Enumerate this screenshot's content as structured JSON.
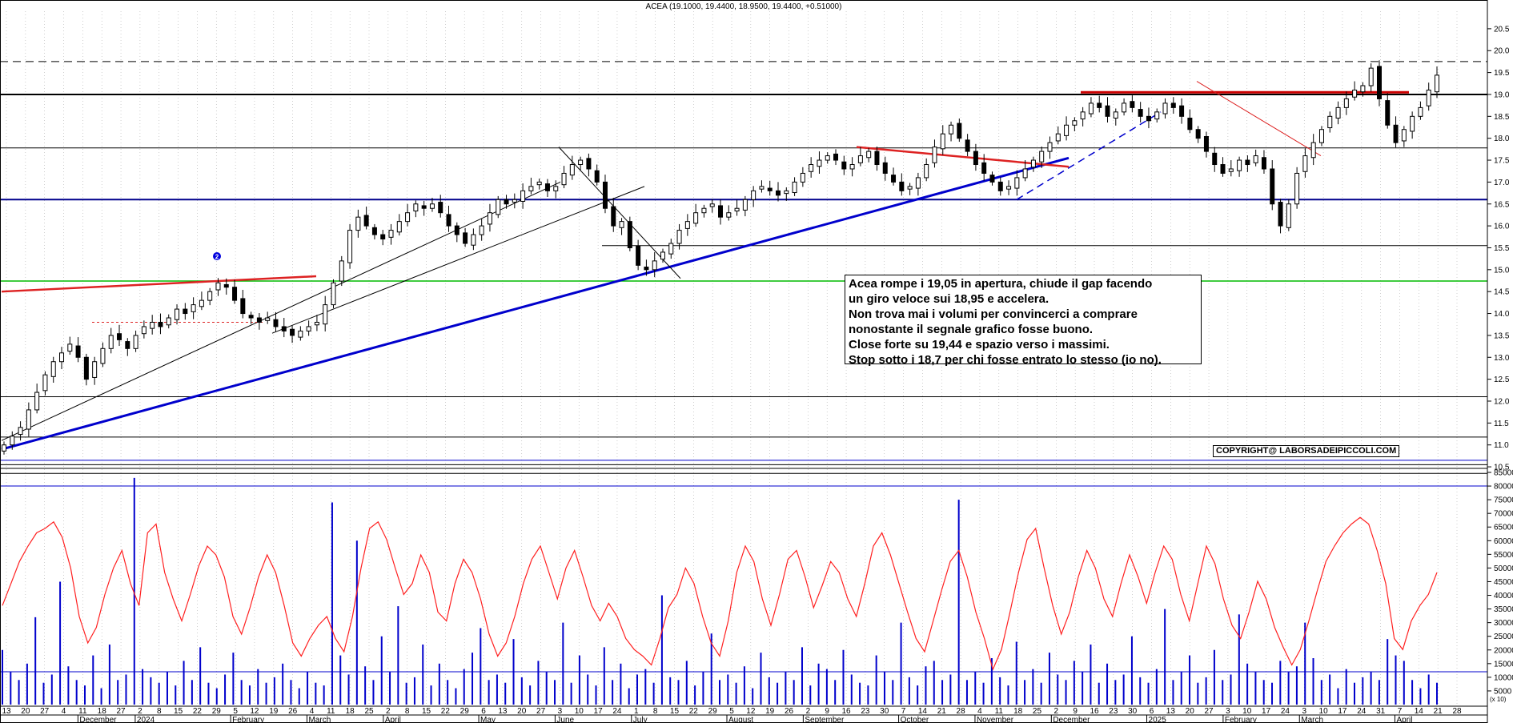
{
  "chart_data": [
    {
      "type": "candlestick",
      "title": "ACEA (19.1000, 19.4400, 18.9500, 19.4400, +0.51000)",
      "ylim": [
        10.3,
        20.9
      ],
      "y_ticks": [
        10.5,
        11.0,
        11.5,
        12.0,
        12.5,
        13.0,
        13.5,
        14.0,
        14.5,
        15.0,
        15.5,
        16.0,
        16.5,
        17.0,
        17.5,
        18.0,
        18.5,
        19.0,
        19.5,
        20.0,
        20.5
      ],
      "y_tick_labels": [
        "10.5",
        "11.0",
        "11.5",
        "12.0",
        "12.5",
        "13.0",
        "13.5",
        "14.0",
        "14.5",
        "15.0",
        "15.5",
        "16.0",
        "16.5",
        "17.0",
        "17.5",
        "18.0",
        "18.5",
        "19.0",
        "19.5",
        "20.0",
        "20.5"
      ],
      "x_day_labels": [
        "13",
        "20",
        "27",
        "4",
        "11",
        "18",
        "27",
        "2",
        "8",
        "15",
        "22",
        "29",
        "5",
        "12",
        "19",
        "26",
        "4",
        "11",
        "18",
        "25",
        "2",
        "8",
        "15",
        "22",
        "29",
        "6",
        "13",
        "20",
        "27",
        "3",
        "10",
        "17",
        "24",
        "1",
        "8",
        "15",
        "22",
        "29",
        "5",
        "12",
        "19",
        "26",
        "2",
        "9",
        "16",
        "23",
        "30",
        "7",
        "14",
        "21",
        "28",
        "4",
        "11",
        "18",
        "25",
        "2",
        "9",
        "16",
        "23",
        "30",
        "6",
        "13",
        "20",
        "27",
        "3",
        "10",
        "17",
        "24",
        "3",
        "10",
        "17",
        "24",
        "31",
        "7",
        "14",
        "21",
        "28"
      ],
      "x_month_labels": [
        "December",
        "2024",
        "February",
        "March",
        "April",
        "May",
        "June",
        "July",
        "August",
        "September",
        "October",
        "November",
        "December",
        "2025",
        "February",
        "March",
        "April"
      ],
      "grid": "vertical dotted",
      "closes": [
        11.0,
        11.2,
        11.4,
        11.8,
        12.2,
        12.6,
        12.9,
        13.1,
        13.3,
        13.0,
        12.5,
        12.9,
        13.2,
        13.5,
        13.4,
        13.2,
        13.5,
        13.7,
        13.8,
        13.7,
        13.9,
        14.1,
        14.0,
        14.2,
        14.3,
        14.5,
        14.7,
        14.6,
        14.3,
        14.0,
        13.9,
        13.8,
        13.9,
        13.7,
        13.6,
        13.5,
        13.6,
        13.7,
        13.8,
        14.2,
        14.7,
        15.2,
        15.9,
        16.2,
        16.0,
        15.8,
        15.7,
        15.9,
        16.1,
        16.3,
        16.5,
        16.4,
        16.5,
        16.3,
        16.0,
        15.8,
        15.6,
        15.8,
        16.0,
        16.3,
        16.6,
        16.5,
        16.6,
        16.8,
        16.9,
        17.0,
        16.8,
        16.9,
        17.2,
        17.4,
        17.5,
        17.3,
        17.0,
        16.4,
        16.0,
        16.1,
        15.5,
        15.1,
        15.0,
        15.2,
        15.4,
        15.6,
        15.9,
        16.1,
        16.3,
        16.4,
        16.5,
        16.2,
        16.3,
        16.4,
        16.6,
        16.8,
        16.9,
        16.8,
        16.7,
        16.8,
        17.0,
        17.2,
        17.4,
        17.5,
        17.6,
        17.5,
        17.3,
        17.4,
        17.6,
        17.7,
        17.4,
        17.2,
        17.0,
        16.8,
        16.9,
        17.1,
        17.4,
        17.8,
        18.1,
        18.3,
        18.0,
        17.7,
        17.4,
        17.2,
        17.0,
        16.8,
        16.9,
        17.1,
        17.3,
        17.5,
        17.7,
        17.9,
        18.1,
        18.3,
        18.4,
        18.6,
        18.8,
        18.7,
        18.5,
        18.6,
        18.8,
        18.7,
        18.5,
        18.4,
        18.6,
        18.8,
        18.7,
        18.5,
        18.2,
        18.0,
        17.7,
        17.4,
        17.2,
        17.3,
        17.5,
        17.4,
        17.6,
        17.3,
        16.5,
        16.0,
        16.5,
        17.2,
        17.6,
        17.9,
        18.2,
        18.5,
        18.7,
        18.9,
        19.1,
        19.2,
        19.6,
        18.9,
        18.3,
        17.9,
        18.2,
        18.5,
        18.7,
        19.1,
        19.44
      ],
      "volume": {
        "ylim": [
          0,
          85000
        ],
        "y_ticks": [
          5000,
          10000,
          15000,
          20000,
          25000,
          30000,
          35000,
          40000,
          45000,
          50000,
          55000,
          60000,
          65000,
          70000,
          75000,
          80000,
          85000
        ],
        "y_tick_labels": [
          "5000",
          "10000",
          "15000",
          "20000",
          "25000",
          "30000",
          "35000",
          "40000",
          "45000",
          "50000",
          "55000",
          "60000",
          "65000",
          "70000",
          "75000",
          "80000",
          "85000"
        ],
        "axis_note": "(x 10)",
        "values": [
          20000,
          12000,
          9000,
          15000,
          32000,
          8000,
          11000,
          45000,
          14000,
          9000,
          7000,
          18000,
          6000,
          22000,
          9000,
          11000,
          83000,
          13000,
          10000,
          8000,
          12000,
          7000,
          16000,
          9000,
          21000,
          8000,
          6000,
          11000,
          19000,
          9000,
          7000,
          13000,
          8000,
          10000,
          15000,
          9000,
          6000,
          12000,
          8000,
          7000,
          74000,
          18000,
          11000,
          60000,
          14000,
          9000,
          25000,
          12000,
          36000,
          8000,
          10000,
          22000,
          7000,
          15000,
          9000,
          6000,
          13000,
          19000,
          28000,
          9000,
          11000,
          8000,
          24000,
          10000,
          7000,
          16000,
          12000,
          9000,
          30000,
          8000,
          18000,
          11000,
          7000,
          21000,
          9000,
          15000,
          6000,
          11000,
          13000,
          8000,
          40000,
          10000,
          9000,
          16000,
          7000,
          12000,
          26000,
          9000,
          11000,
          8000,
          14000,
          6000,
          19000,
          10000,
          8000,
          12000,
          9000,
          21000,
          7000,
          15000,
          13000,
          9000,
          20000,
          11000,
          8000,
          7000,
          18000,
          12000,
          9000,
          30000,
          10000,
          7000,
          14000,
          16000,
          9000,
          11000,
          75000,
          9000,
          12000,
          8000,
          17000,
          10000,
          7000,
          23000,
          9000,
          13000,
          8000,
          19000,
          11000,
          9000,
          16000,
          12000,
          22000,
          8000,
          15000,
          9000,
          11000,
          25000,
          10000,
          8000,
          13000,
          35000,
          9000,
          12000,
          18000,
          8000,
          10000,
          20000,
          9000,
          11000,
          33000,
          15000,
          12000,
          9000,
          8000,
          16000,
          12000,
          14000,
          30000,
          17000,
          9000,
          11000,
          6000,
          13000,
          8000,
          10000,
          12000,
          9000,
          24000,
          18000,
          16000,
          9000,
          6000,
          11000,
          8000
        ],
        "avg_line": 12000,
        "upper_line": 80000
      },
      "oscillator_red": [
        45,
        55,
        65,
        72,
        78,
        80,
        83,
        76,
        62,
        40,
        28,
        35,
        50,
        62,
        70,
        55,
        45,
        78,
        82,
        60,
        48,
        38,
        50,
        63,
        72,
        68,
        58,
        40,
        32,
        44,
        58,
        68,
        60,
        45,
        28,
        22,
        30,
        36,
        40,
        30,
        24,
        40,
        62,
        80,
        83,
        75,
        62,
        50,
        55,
        68,
        60,
        42,
        38,
        55,
        66,
        60,
        48,
        32,
        22,
        28,
        40,
        55,
        66,
        72,
        60,
        48,
        62,
        70,
        58,
        45,
        38,
        46,
        40,
        30,
        25,
        22,
        18,
        30,
        44,
        50,
        62,
        55,
        40,
        28,
        22,
        38,
        60,
        72,
        65,
        48,
        36,
        50,
        66,
        70,
        58,
        44,
        54,
        65,
        60,
        48,
        40,
        55,
        72,
        78,
        68,
        55,
        42,
        30,
        24,
        38,
        52,
        65,
        70,
        58,
        42,
        30,
        16,
        25,
        42,
        60,
        75,
        80,
        62,
        45,
        32,
        42,
        58,
        70,
        62,
        48,
        40,
        55,
        68,
        58,
        46,
        60,
        72,
        66,
        50,
        38,
        55,
        72,
        64,
        48,
        36,
        30,
        42,
        56,
        48,
        35,
        26,
        18,
        25,
        38,
        52,
        65,
        72,
        78,
        82,
        85,
        82,
        70,
        55,
        30,
        25,
        38,
        45,
        50,
        60
      ]
    }
  ],
  "annotation": {
    "lines": [
      "Acea rompe i 19,05 in apertura, chiude il gap facendo",
      "un giro veloce sui 18,95 e accelera.",
      "Non trova mai i volumi per convincerci a comprare",
      "nonostante il segnale grafico fosse buono.",
      "Close forte su 19,44  e spazio verso i massimi.",
      "Stop sotto i 18,7 per chi fosse entrato lo stesso (io no)."
    ],
    "copyright": "COPYRIGHT@ LABORSADEIPICCOLI.COM",
    "marker": "2"
  },
  "colors": {
    "candle": "#000000",
    "trend_blue": "#0000cc",
    "trend_red": "#dd2222",
    "support_green": "#00bb00",
    "oscillator": "#ff2020",
    "volume": "#0000cc"
  }
}
